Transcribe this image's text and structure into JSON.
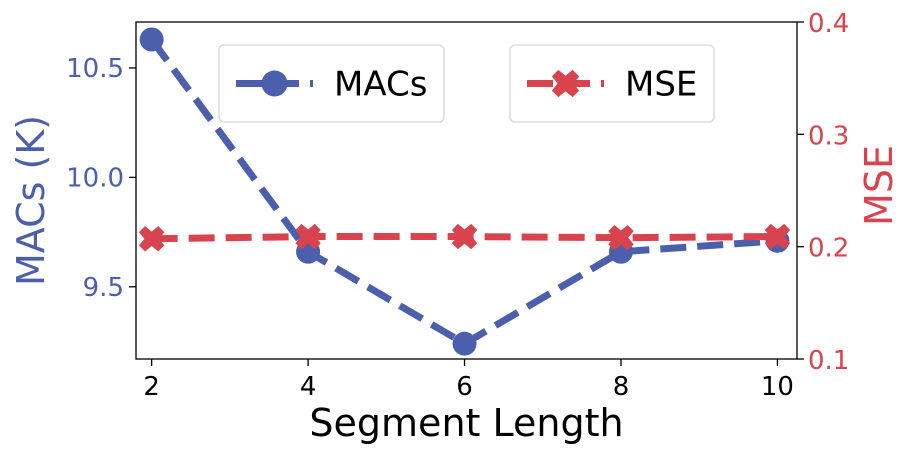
{
  "chart_data": {
    "type": "line",
    "xlabel": "Segment Length",
    "x": [
      2,
      4,
      6,
      8,
      10
    ],
    "xticks": [
      "2",
      "4",
      "6",
      "8",
      "10"
    ],
    "xlim": [
      1.8,
      10.25
    ],
    "grid": false,
    "legend_placement": "top, inside plot",
    "series": [
      {
        "name": "MACs",
        "axis": "left",
        "values": [
          10.63,
          9.66,
          9.24,
          9.66,
          9.71
        ],
        "color": "#4c5fac",
        "marker": "circle",
        "linestyle": "dashed"
      },
      {
        "name": "MSE",
        "axis": "right",
        "values": [
          0.207,
          0.209,
          0.209,
          0.208,
          0.209
        ],
        "color": "#d9434e",
        "marker": "x-filled",
        "linestyle": "dashed"
      }
    ],
    "y_left": {
      "label": "MACs (K)",
      "ticks": [
        "9.5",
        "10.0",
        "10.5"
      ],
      "tick_values": [
        9.5,
        10.0,
        10.5
      ],
      "ylim": [
        9.17,
        10.71
      ],
      "color": "#4c5fac"
    },
    "y_right": {
      "label": "MSE",
      "ticks": [
        "0.1",
        "0.2",
        "0.3",
        "0.4"
      ],
      "tick_values": [
        0.1,
        0.2,
        0.3,
        0.4
      ],
      "ylim": [
        0.1,
        0.4
      ],
      "color": "#d9434e"
    }
  }
}
